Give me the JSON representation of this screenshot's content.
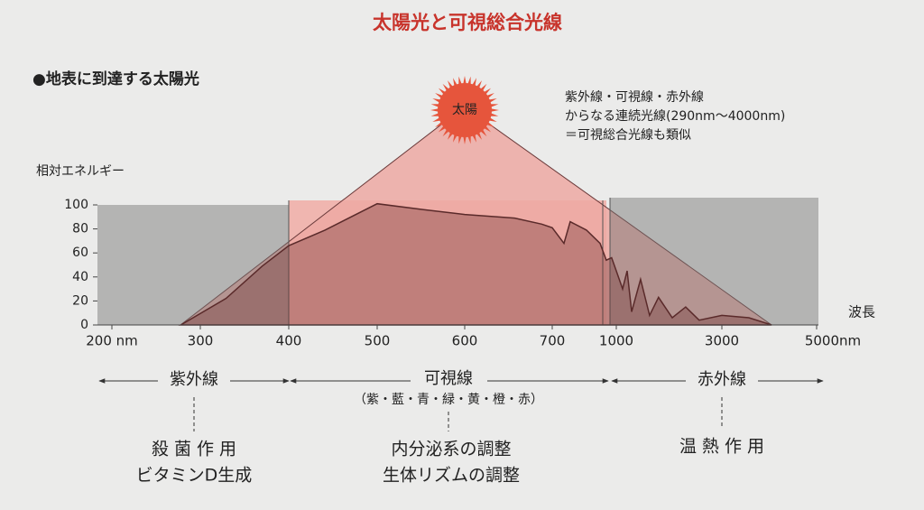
{
  "chart_data": {
    "type": "area",
    "title": "太陽光と可視総合光線",
    "subtitle": "●地表に到達する太陽光",
    "sun_label": "太陽",
    "annotations": [
      "紫外線・可視線・赤外線",
      "からなる連続光線(290nm〜4000nm)",
      "＝可視総合光線も類似"
    ],
    "ylabel": "相対エネルギー",
    "xlabel": "波長",
    "x": [
      278,
      329,
      370,
      400,
      441,
      500,
      553,
      600,
      657,
      688,
      700,
      755,
      784,
      860,
      924,
      953,
      978,
      1000,
      1120,
      1205,
      1290,
      1460,
      1630,
      1800,
      2060,
      2315,
      2570,
      3000,
      3570,
      4050
    ],
    "values": [
      0,
      22,
      49,
      66,
      79,
      101,
      96,
      92,
      89,
      84,
      81,
      68,
      86,
      79,
      68,
      54,
      56,
      45,
      30,
      45,
      11,
      38,
      8,
      23,
      6,
      15,
      4,
      8,
      6,
      0
    ],
    "color": "#5a2a2a",
    "xlim": [
      200,
      5000
    ],
    "xticks": [
      {
        "value": 200,
        "label": "200 nm"
      },
      300,
      400,
      500,
      600,
      700,
      1000,
      3000,
      {
        "value": 5000,
        "label": "5000nm"
      }
    ],
    "ylim": [
      0,
      100
    ],
    "yticks": [
      0,
      20,
      40,
      60,
      80,
      100
    ],
    "bands": [
      {
        "name": "紫外線",
        "effects": [
          "殺 菌 作 用",
          "ビタミンD生成"
        ]
      },
      {
        "name": "可視線",
        "colors": "（紫・藍・青・緑・黄・橙・赤）",
        "effects": [
          "内分泌系の調整",
          "生体リズムの調整"
        ]
      },
      {
        "name": "赤外線",
        "effects": [
          "温 熱 作 用"
        ]
      }
    ]
  }
}
